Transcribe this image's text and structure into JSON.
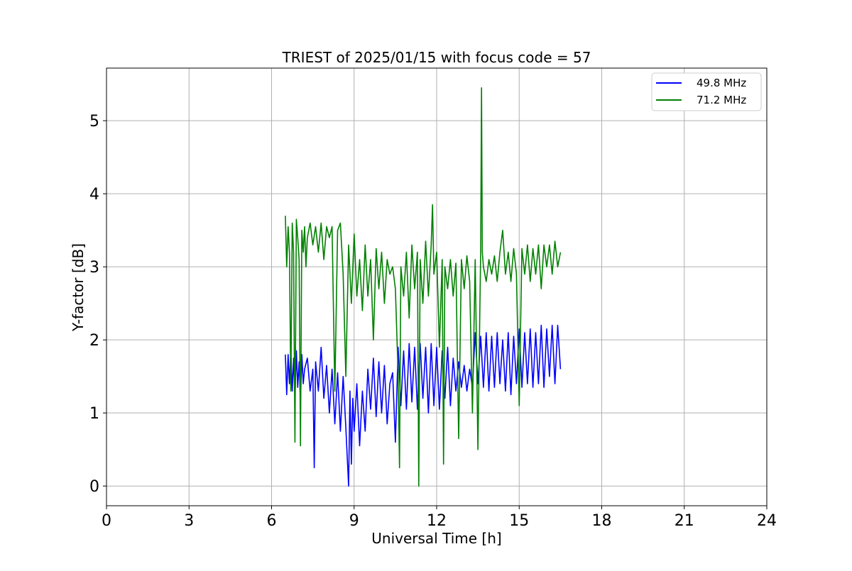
{
  "chart_data": {
    "type": "line",
    "title": "TRIEST of 2025/01/15 with focus code = 57",
    "xlabel": "Universal Time [h]",
    "ylabel": "Y-factor [dB]",
    "xlim": [
      0,
      24
    ],
    "ylim": [
      -0.27,
      5.72
    ],
    "xticks": [
      0,
      3,
      6,
      9,
      12,
      15,
      18,
      21,
      24
    ],
    "yticks": [
      0,
      1,
      2,
      3,
      4,
      5
    ],
    "grid": true,
    "legend_position": "top-right",
    "series": [
      {
        "name": "49.8 MHz",
        "color": "#0000ff",
        "x": [
          6.5,
          6.55,
          6.6,
          6.65,
          6.7,
          6.75,
          6.8,
          6.85,
          6.9,
          6.95,
          7.0,
          7.05,
          7.1,
          7.15,
          7.2,
          7.3,
          7.4,
          7.5,
          7.55,
          7.6,
          7.7,
          7.8,
          7.9,
          8.0,
          8.1,
          8.2,
          8.3,
          8.4,
          8.5,
          8.6,
          8.7,
          8.8,
          8.85,
          8.9,
          8.95,
          9.0,
          9.1,
          9.2,
          9.3,
          9.4,
          9.5,
          9.6,
          9.7,
          9.8,
          9.9,
          10.0,
          10.1,
          10.2,
          10.3,
          10.4,
          10.5,
          10.6,
          10.7,
          10.8,
          10.9,
          11.0,
          11.1,
          11.2,
          11.3,
          11.4,
          11.5,
          11.6,
          11.7,
          11.8,
          11.9,
          12.0,
          12.1,
          12.2,
          12.3,
          12.4,
          12.5,
          12.6,
          12.7,
          12.8,
          12.9,
          13.0,
          13.1,
          13.2,
          13.3,
          13.4,
          13.5,
          13.6,
          13.7,
          13.8,
          13.9,
          14.0,
          14.1,
          14.2,
          14.3,
          14.4,
          14.5,
          14.6,
          14.7,
          14.8,
          14.9,
          15.0,
          15.1,
          15.2,
          15.3,
          15.4,
          15.5,
          15.6,
          15.7,
          15.8,
          15.9,
          16.0,
          16.1,
          16.2,
          16.3,
          16.4,
          16.5
        ],
        "y": [
          1.8,
          1.25,
          1.8,
          1.4,
          1.85,
          1.3,
          1.75,
          1.2,
          1.85,
          1.35,
          1.7,
          1.15,
          1.8,
          1.4,
          1.6,
          1.75,
          1.3,
          1.6,
          0.25,
          1.7,
          1.3,
          1.9,
          1.2,
          1.65,
          1.0,
          1.6,
          0.85,
          1.55,
          0.75,
          1.5,
          0.8,
          0.0,
          1.3,
          0.3,
          1.2,
          0.75,
          1.4,
          0.55,
          1.3,
          0.75,
          1.6,
          1.05,
          1.75,
          0.95,
          1.7,
          1.0,
          1.65,
          0.85,
          1.4,
          1.55,
          0.6,
          1.9,
          1.1,
          1.85,
          1.05,
          1.95,
          1.15,
          1.9,
          1.05,
          1.95,
          1.2,
          1.9,
          1.0,
          1.95,
          1.1,
          1.9,
          1.05,
          1.85,
          1.2,
          1.9,
          1.1,
          1.75,
          1.3,
          1.7,
          1.35,
          1.65,
          1.3,
          1.6,
          1.35,
          2.1,
          1.4,
          2.05,
          1.35,
          2.1,
          1.3,
          2.05,
          1.35,
          2.1,
          1.4,
          2.0,
          1.3,
          2.1,
          1.25,
          2.05,
          1.4,
          2.15,
          1.35,
          2.1,
          1.4,
          2.15,
          1.35,
          2.1,
          1.4,
          2.2,
          1.35,
          2.15,
          1.5,
          2.2,
          1.4,
          2.2,
          1.6
        ]
      },
      {
        "name": "71.2 MHz",
        "color": "#008000",
        "x": [
          6.5,
          6.55,
          6.6,
          6.65,
          6.7,
          6.75,
          6.8,
          6.85,
          6.9,
          6.95,
          7.0,
          7.05,
          7.1,
          7.15,
          7.2,
          7.25,
          7.3,
          7.4,
          7.5,
          7.6,
          7.7,
          7.8,
          7.9,
          8.0,
          8.1,
          8.2,
          8.3,
          8.4,
          8.5,
          8.6,
          8.7,
          8.8,
          8.9,
          9.0,
          9.1,
          9.2,
          9.3,
          9.4,
          9.5,
          9.6,
          9.7,
          9.8,
          9.9,
          10.0,
          10.1,
          10.2,
          10.3,
          10.4,
          10.5,
          10.6,
          10.65,
          10.7,
          10.8,
          10.9,
          11.0,
          11.1,
          11.2,
          11.3,
          11.35,
          11.4,
          11.5,
          11.6,
          11.7,
          11.8,
          11.85,
          11.9,
          12.0,
          12.1,
          12.2,
          12.25,
          12.3,
          12.4,
          12.5,
          12.6,
          12.7,
          12.8,
          12.9,
          13.0,
          13.1,
          13.2,
          13.3,
          13.4,
          13.5,
          13.6,
          13.63,
          13.66,
          13.7,
          13.8,
          13.9,
          14.0,
          14.1,
          14.2,
          14.3,
          14.4,
          14.5,
          14.6,
          14.7,
          14.8,
          14.9,
          15.0,
          15.1,
          15.2,
          15.3,
          15.4,
          15.5,
          15.6,
          15.7,
          15.8,
          15.9,
          16.0,
          16.1,
          16.2,
          16.3,
          16.4,
          16.5
        ],
        "y": [
          3.7,
          3.0,
          3.55,
          3.2,
          1.3,
          3.6,
          3.2,
          0.6,
          3.65,
          3.4,
          3.1,
          0.55,
          3.5,
          3.2,
          3.55,
          3.0,
          3.4,
          3.6,
          3.3,
          3.55,
          3.2,
          3.6,
          3.1,
          3.55,
          3.4,
          3.55,
          1.3,
          3.5,
          3.6,
          2.9,
          1.5,
          3.3,
          2.5,
          3.45,
          2.6,
          3.1,
          2.4,
          3.3,
          2.6,
          3.1,
          2.0,
          3.25,
          2.7,
          3.2,
          2.5,
          3.1,
          2.9,
          3.0,
          2.7,
          1.5,
          0.25,
          3.0,
          2.6,
          3.2,
          2.3,
          3.3,
          2.7,
          3.2,
          0.0,
          3.1,
          2.5,
          3.35,
          2.6,
          3.3,
          3.85,
          2.9,
          3.2,
          1.9,
          3.1,
          0.3,
          3.0,
          2.7,
          3.1,
          2.6,
          3.05,
          0.65,
          3.1,
          2.7,
          3.15,
          2.8,
          1.0,
          3.1,
          0.5,
          3.2,
          5.45,
          3.2,
          3.0,
          2.8,
          3.1,
          2.9,
          3.15,
          2.8,
          3.2,
          3.5,
          2.9,
          3.2,
          2.8,
          3.25,
          2.9,
          1.1,
          3.25,
          2.9,
          3.3,
          2.8,
          3.25,
          2.9,
          3.3,
          2.7,
          3.3,
          3.0,
          3.3,
          2.9,
          3.35,
          3.0,
          3.2
        ]
      }
    ]
  }
}
